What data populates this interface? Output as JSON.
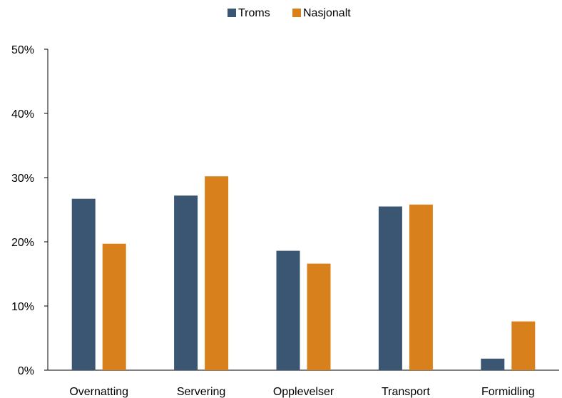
{
  "chart_data": {
    "type": "bar",
    "categories": [
      "Overnatting",
      "Servering",
      "Opplevelser",
      "Transport",
      "Formidling"
    ],
    "series": [
      {
        "name": "Troms",
        "values": [
          26.7,
          27.2,
          18.6,
          25.5,
          1.8
        ],
        "color": "#3b5673"
      },
      {
        "name": "Nasjonalt",
        "values": [
          19.7,
          30.2,
          16.6,
          25.8,
          7.6
        ],
        "color": "#d8811c"
      }
    ],
    "yticks": [
      "0%",
      "10%",
      "20%",
      "30%",
      "40%",
      "50%"
    ],
    "ylim": [
      0,
      50
    ],
    "grid": false,
    "legend_position": "top-center"
  }
}
